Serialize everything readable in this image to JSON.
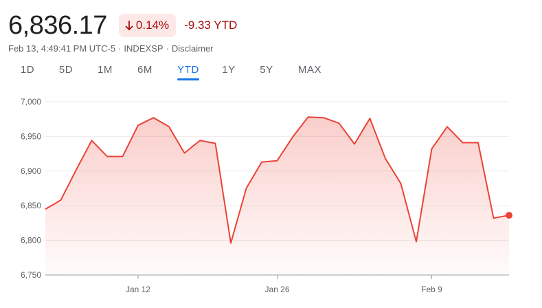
{
  "quote": {
    "price": "6,836.17",
    "change_percent": "0.14%",
    "change_direction": "down",
    "change_ytd": "-9.33 YTD",
    "timestamp": "Feb 13, 4:49:41 PM UTC-5",
    "exchange": "INDEXSP",
    "disclaimer": "Disclaimer"
  },
  "ranges": [
    {
      "label": "1D",
      "active": false
    },
    {
      "label": "5D",
      "active": false
    },
    {
      "label": "1M",
      "active": false
    },
    {
      "label": "6M",
      "active": false
    },
    {
      "label": "YTD",
      "active": true
    },
    {
      "label": "1Y",
      "active": false
    },
    {
      "label": "5Y",
      "active": false
    },
    {
      "label": "MAX",
      "active": false
    }
  ],
  "colors": {
    "negative": "#a50e0e",
    "negative_bg": "#fce8e6",
    "line": "#ea4335",
    "active_tab": "#1a73e8"
  },
  "chart_data": {
    "type": "area",
    "ylim": [
      6750,
      7000
    ],
    "yticks": [
      "7,000",
      "6,950",
      "6,900",
      "6,850",
      "6,800",
      "6,750"
    ],
    "ytick_values": [
      7000,
      6950,
      6900,
      6850,
      6800,
      6750
    ],
    "xticks": [
      {
        "label": "Jan 12",
        "index": 6
      },
      {
        "label": "Jan 26",
        "index": 15
      },
      {
        "label": "Feb 9",
        "index": 25
      }
    ],
    "grid": true,
    "series": [
      {
        "values": [
          6845,
          6858,
          6902,
          6944,
          6921,
          6921,
          6966,
          6977,
          6964,
          6926,
          6944,
          6940,
          6796,
          6875,
          6913,
          6915,
          6949,
          6978,
          6977,
          6969,
          6939,
          6976,
          6918,
          6882,
          6798,
          6932,
          6964,
          6941,
          6941,
          6832,
          6836.17
        ]
      }
    ]
  }
}
